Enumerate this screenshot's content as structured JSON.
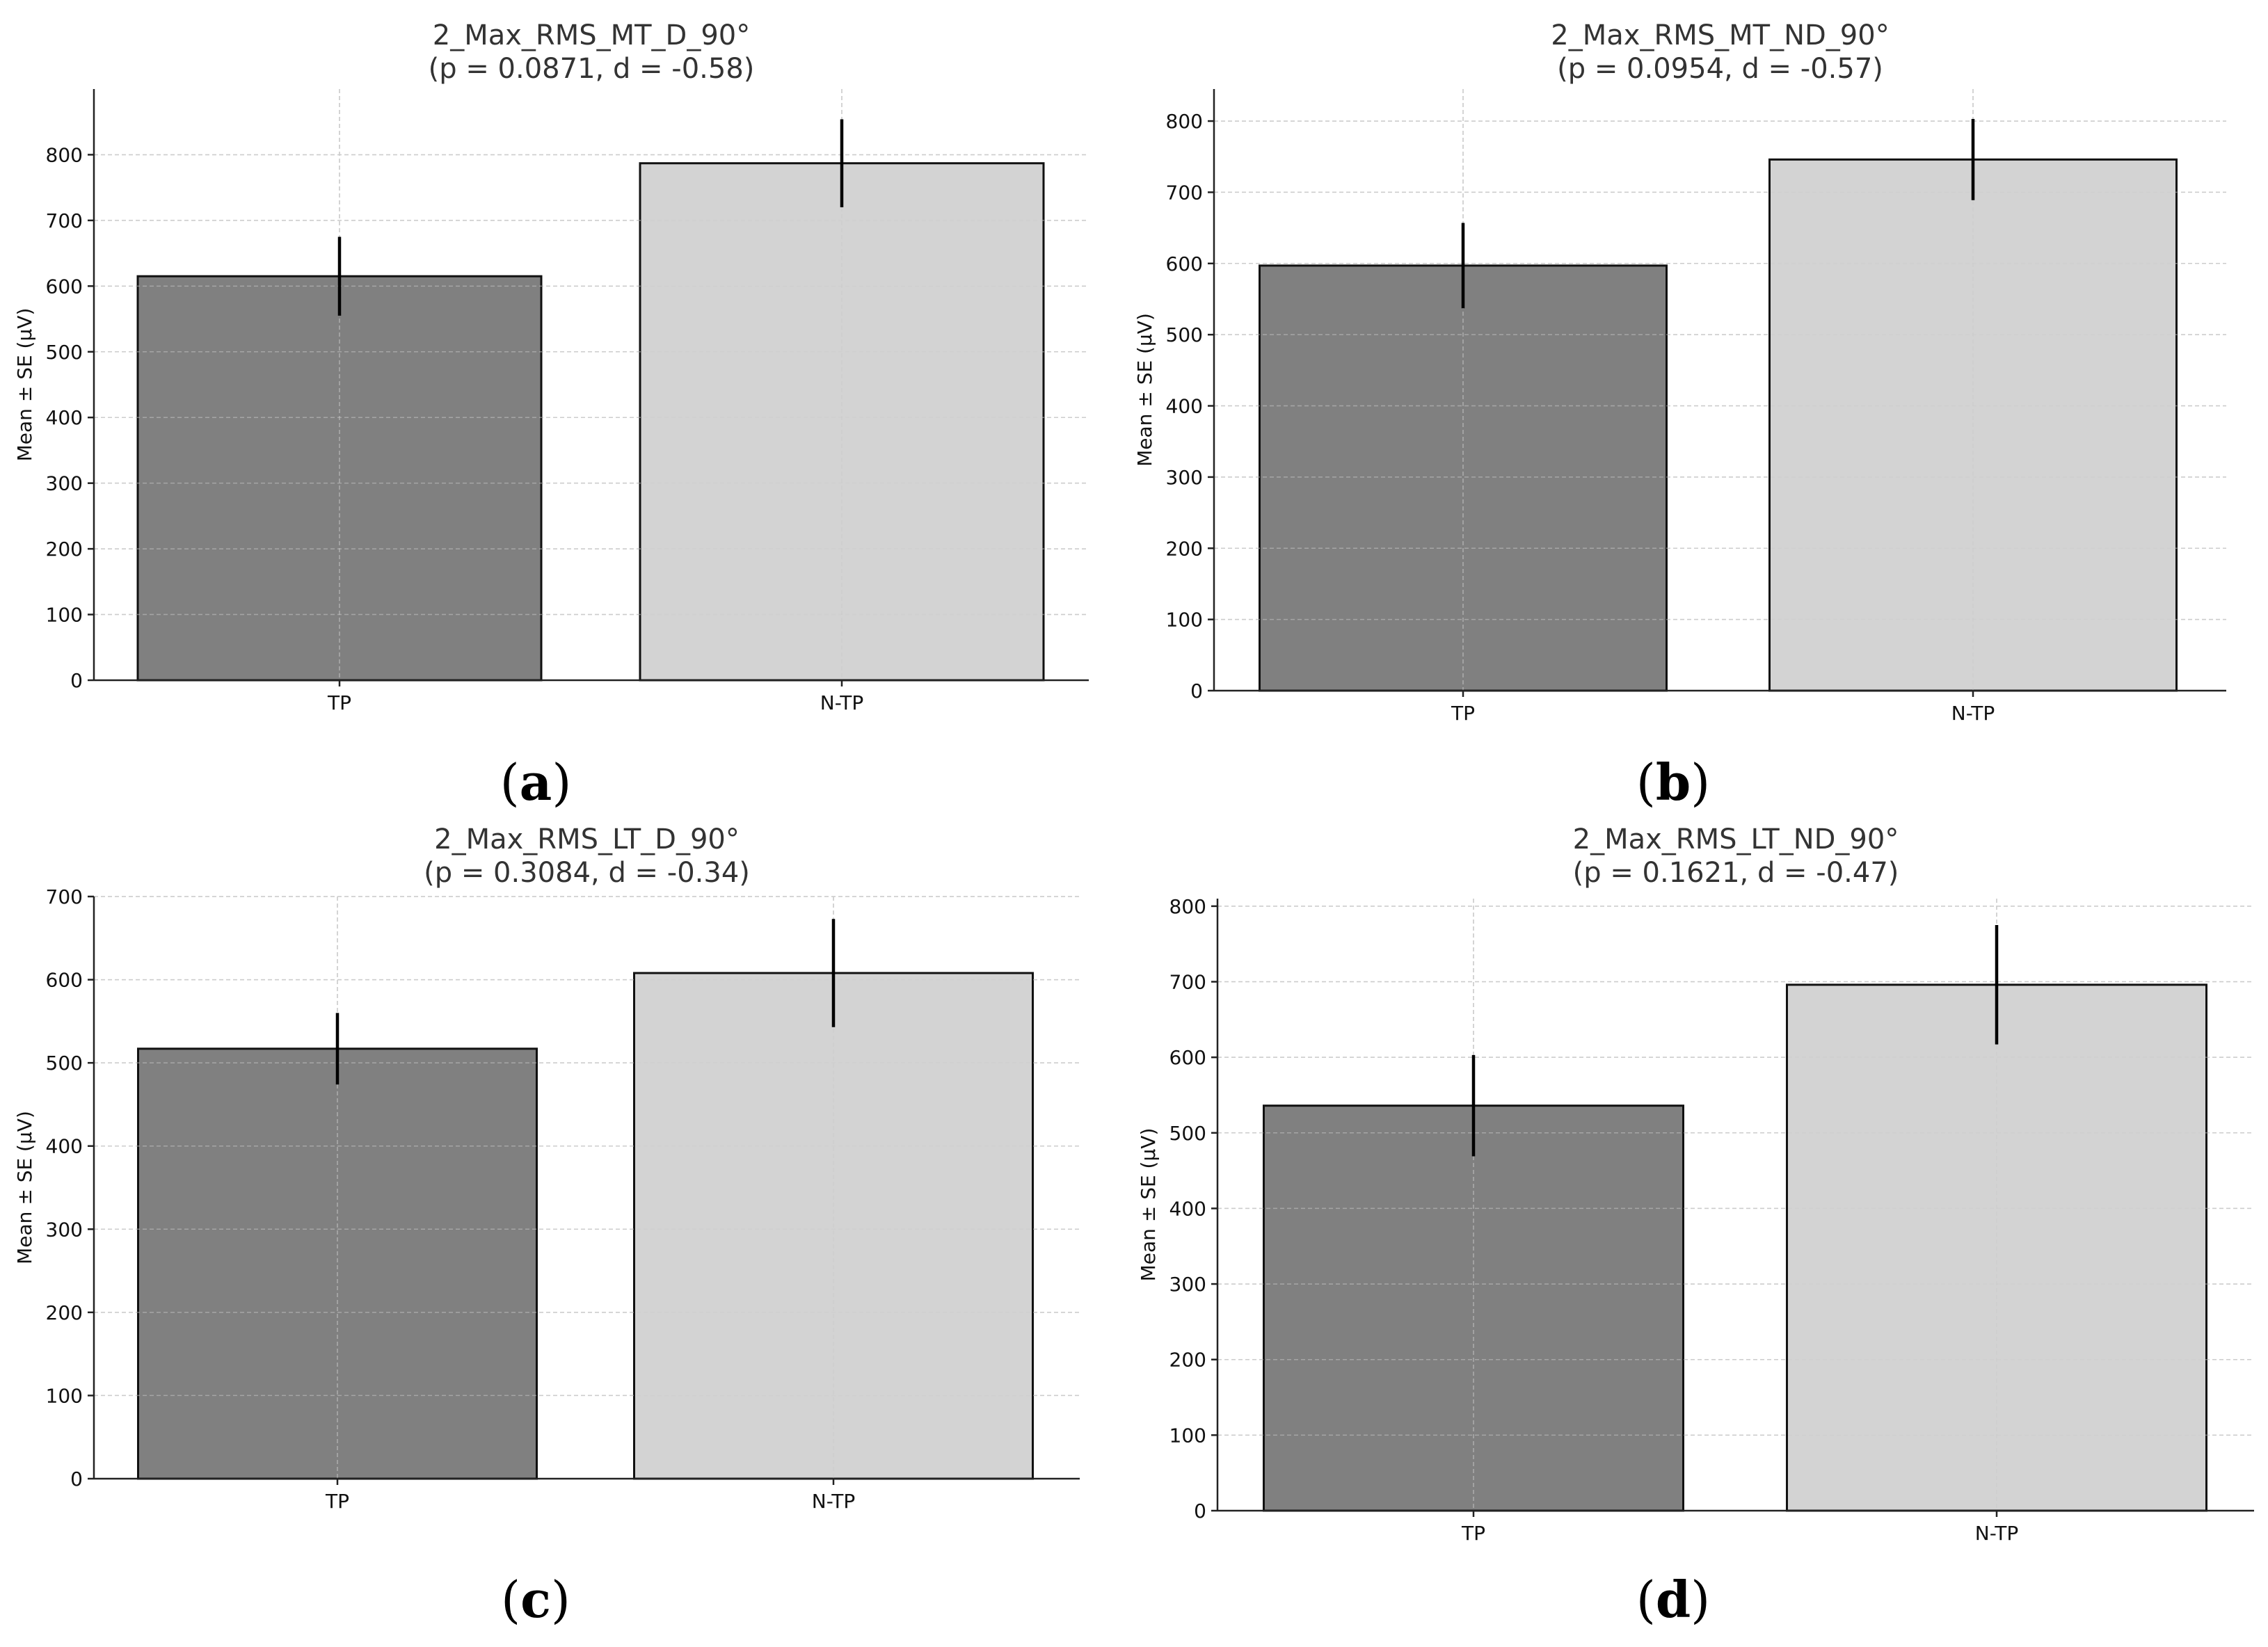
{
  "chart_data": [
    {
      "type": "bar",
      "panel_label": "a",
      "title_line1": "2_Max_RMS_MT_D_90°",
      "title_line2": "(p = 0.0871, d = -0.58)",
      "ylabel": "Mean ± SE (μV)",
      "xlabel": "",
      "categories": [
        "TP",
        "N-TP"
      ],
      "values": [
        615,
        787
      ],
      "errors": [
        60,
        67
      ],
      "colors": [
        "#808080",
        "#d3d3d3"
      ],
      "ylim": [
        0,
        900
      ],
      "yticks": [
        0,
        100,
        200,
        300,
        400,
        500,
        600,
        700,
        800
      ],
      "grid": true
    },
    {
      "type": "bar",
      "panel_label": "b",
      "title_line1": "2_Max_RMS_MT_ND_90°",
      "title_line2": "(p = 0.0954, d = -0.57)",
      "ylabel": "Mean ± SE (μV)",
      "xlabel": "",
      "categories": [
        "TP",
        "N-TP"
      ],
      "values": [
        597,
        746
      ],
      "errors": [
        60,
        57
      ],
      "colors": [
        "#808080",
        "#d3d3d3"
      ],
      "ylim": [
        0,
        845
      ],
      "yticks": [
        0,
        100,
        200,
        300,
        400,
        500,
        600,
        700,
        800
      ],
      "grid": true
    },
    {
      "type": "bar",
      "panel_label": "c",
      "title_line1": "2_Max_RMS_LT_D_90°",
      "title_line2": "(p = 0.3084, d = -0.34)",
      "ylabel": "Mean ± SE (μV)",
      "xlabel": "",
      "categories": [
        "TP",
        "N-TP"
      ],
      "values": [
        517,
        608
      ],
      "errors": [
        43,
        65
      ],
      "colors": [
        "#808080",
        "#d3d3d3"
      ],
      "ylim": [
        0,
        700
      ],
      "yticks": [
        0,
        100,
        200,
        300,
        400,
        500,
        600,
        700
      ],
      "grid": true
    },
    {
      "type": "bar",
      "panel_label": "d",
      "title_line1": "2_Max_RMS_LT_ND_90°",
      "title_line2": "(p = 0.1621, d = -0.47)",
      "ylabel": "Mean ± SE (μV)",
      "xlabel": "",
      "categories": [
        "TP",
        "N-TP"
      ],
      "values": [
        536,
        696
      ],
      "errors": [
        67,
        79
      ],
      "colors": [
        "#808080",
        "#d3d3d3"
      ],
      "ylim": [
        0,
        810
      ],
      "yticks": [
        0,
        100,
        200,
        300,
        400,
        500,
        600,
        700,
        800
      ],
      "grid": true
    }
  ]
}
